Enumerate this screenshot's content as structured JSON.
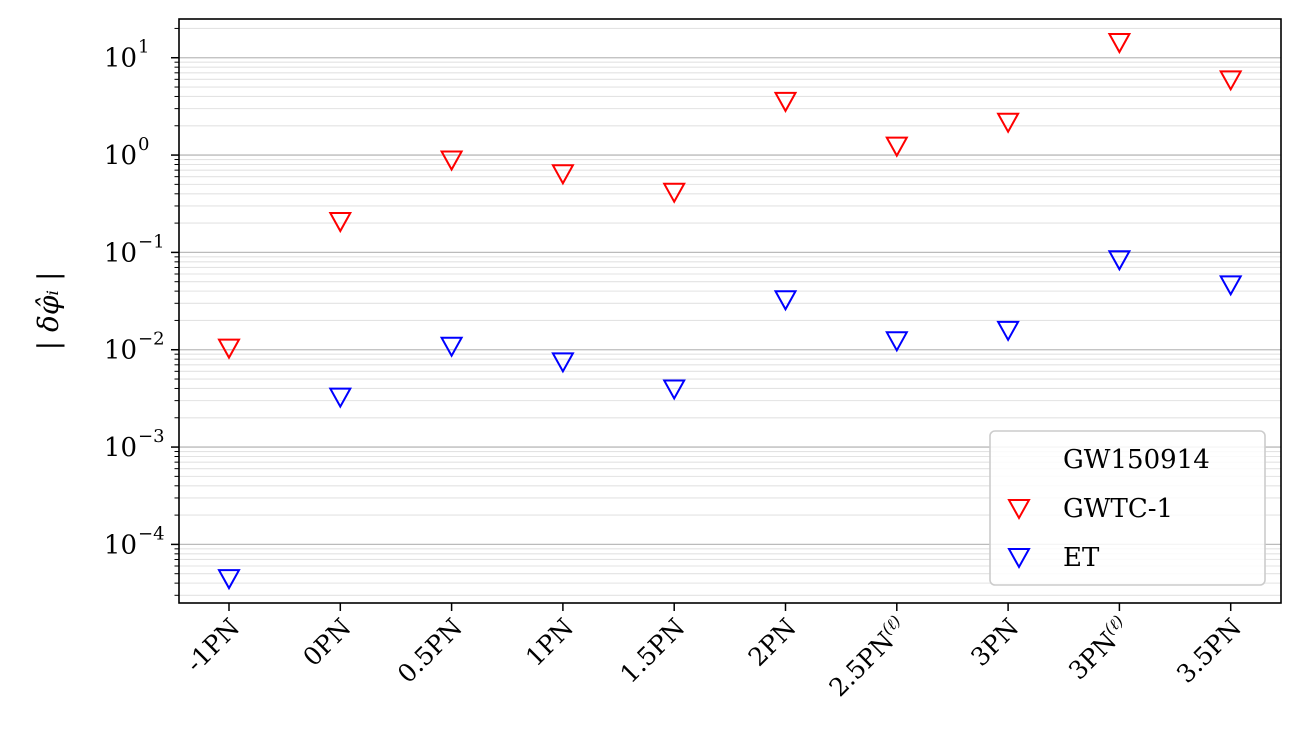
{
  "chart_data": {
    "type": "scatter",
    "yscale": "log",
    "ylabel": "| δφ̂_i |",
    "xlabel": "",
    "ylim": [
      2.5e-05,
      25
    ],
    "grid": true,
    "legend_position": "lower-right",
    "categories": [
      "-1PN",
      "0PN",
      "0.5PN",
      "1PN",
      "1.5PN",
      "2PN",
      "2.5PN(ℓ)",
      "3PN",
      "3PN(ℓ)",
      "3.5PN"
    ],
    "category_superscripts": [
      "",
      "",
      "",
      "",
      "",
      "",
      "(ℓ)",
      "",
      "(ℓ)",
      ""
    ],
    "category_bases": [
      "-1PN",
      "0PN",
      "0.5PN",
      "1PN",
      "1.5PN",
      "2PN",
      "2.5PN",
      "3PN",
      "3PN",
      "3.5PN"
    ],
    "yticks": [
      {
        "base": "10",
        "exp": "1",
        "value": 10
      },
      {
        "base": "10",
        "exp": "0",
        "value": 1
      },
      {
        "base": "10",
        "exp": "−1",
        "value": 0.1
      },
      {
        "base": "10",
        "exp": "−2",
        "value": 0.01
      },
      {
        "base": "10",
        "exp": "−3",
        "value": 0.001
      },
      {
        "base": "10",
        "exp": "−4",
        "value": 0.0001
      }
    ],
    "series": [
      {
        "name": "GW150914",
        "color": "#ffffff",
        "marker": "none",
        "values": []
      },
      {
        "name": "GWTC-1",
        "color": "#ff0000",
        "marker": "triangle-down-open",
        "values": [
          0.0105,
          0.21,
          0.9,
          0.65,
          0.42,
          3.6,
          1.25,
          2.2,
          14.5,
          6.0
        ]
      },
      {
        "name": "ET",
        "color": "#0000ff",
        "marker": "triangle-down-open",
        "values": [
          4.5e-05,
          0.0033,
          0.011,
          0.0076,
          0.004,
          0.033,
          0.0125,
          0.016,
          0.085,
          0.047
        ]
      }
    ]
  }
}
